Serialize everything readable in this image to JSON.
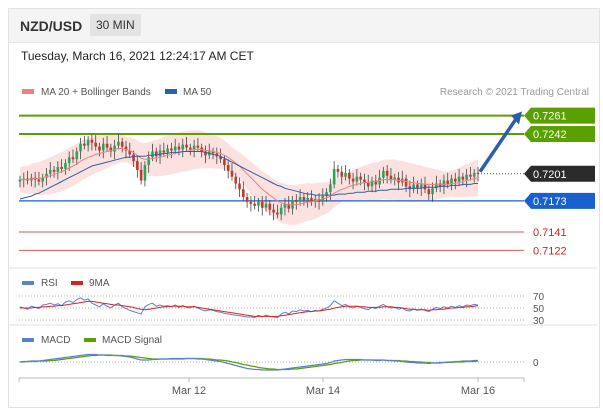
{
  "header": {
    "symbol": "NZD/USD",
    "timeframe": "30 MIN"
  },
  "datetime": "Tuesday, March 16, 2021 12:24:17 AM CET",
  "legend": {
    "ma20": {
      "label": "MA 20 + Bollinger Bands",
      "color": "#f08080"
    },
    "ma50": {
      "label": "MA 50",
      "color": "#2d5fa8"
    }
  },
  "credit": "Research © 2021 Trading Central",
  "colors": {
    "bull": "#26a65b",
    "bear": "#c0392b",
    "resistance": "#5aa000",
    "support": "#e05555",
    "pivot": "#1a5fd0",
    "band": "#fbdcdc",
    "arrow": "#2d5fa8"
  },
  "levels": [
    {
      "value": "0.7261",
      "kind": "resistance"
    },
    {
      "value": "0.7242",
      "kind": "resistance"
    },
    {
      "value": "0.7201",
      "kind": "current"
    },
    {
      "value": "0.7173",
      "kind": "pivot"
    },
    {
      "value": "0.7141",
      "kind": "support"
    },
    {
      "value": "0.7122",
      "kind": "support"
    }
  ],
  "rsi_panel": {
    "legend": [
      {
        "label": "RSI",
        "color": "#5b7fd6"
      },
      {
        "label": "9MA",
        "color": "#e02020"
      }
    ],
    "ticks": [
      "70",
      "50",
      "30"
    ]
  },
  "macd_panel": {
    "legend": [
      {
        "label": "MACD",
        "color": "#5b7fd6"
      },
      {
        "label": "MACD Signal",
        "color": "#5aa000"
      }
    ],
    "ticks": [
      "0"
    ]
  },
  "chart_data": {
    "type": "line",
    "xlabel": "",
    "ylabel": "",
    "x_ticks": [
      "Mar 12",
      "Mar 14",
      "Mar 16"
    ],
    "ylim": [
      0.711,
      0.7275
    ],
    "close": [
      0.7195,
      0.7196,
      0.7194,
      0.7197,
      0.7195,
      0.7193,
      0.7197,
      0.7201,
      0.7205,
      0.7203,
      0.7208,
      0.7206,
      0.7212,
      0.7218,
      0.7216,
      0.7224,
      0.7232,
      0.723,
      0.7236,
      0.7233,
      0.7229,
      0.7225,
      0.7232,
      0.7228,
      0.7224,
      0.723,
      0.7234,
      0.7229,
      0.7225,
      0.7221,
      0.7214,
      0.7205,
      0.7194,
      0.721,
      0.7218,
      0.7224,
      0.7219,
      0.7225,
      0.7223,
      0.7227,
      0.7225,
      0.7229,
      0.7226,
      0.7231,
      0.7228,
      0.7226,
      0.723,
      0.7228,
      0.7224,
      0.722,
      0.7224,
      0.7222,
      0.7219,
      0.7216,
      0.721,
      0.7204,
      0.7198,
      0.7191,
      0.7185,
      0.7177,
      0.7172,
      0.717,
      0.7168,
      0.7172,
      0.7166,
      0.717,
      0.7164,
      0.7161,
      0.7159,
      0.7166,
      0.717,
      0.7165,
      0.7174,
      0.7172,
      0.7177,
      0.7174,
      0.7176,
      0.7172,
      0.7175,
      0.7172,
      0.7178,
      0.7182,
      0.719,
      0.7206,
      0.7203,
      0.7198,
      0.7202,
      0.7196,
      0.7193,
      0.7198,
      0.7195,
      0.7192,
      0.7188,
      0.7194,
      0.719,
      0.7197,
      0.7204,
      0.7199,
      0.7195,
      0.7197,
      0.7192,
      0.7196,
      0.7188,
      0.7185,
      0.719,
      0.7186,
      0.719,
      0.7185,
      0.718,
      0.7186,
      0.7191,
      0.7188,
      0.7194,
      0.719,
      0.7196,
      0.7193,
      0.7198,
      0.7195,
      0.72,
      0.7198,
      0.7202,
      0.7201
    ],
    "ma20": [
      0.7195,
      0.7195,
      0.7195,
      0.7196,
      0.7196,
      0.7196,
      0.7197,
      0.7198,
      0.7199,
      0.72,
      0.7202,
      0.7203,
      0.7205,
      0.7207,
      0.7209,
      0.7211,
      0.7214,
      0.7216,
      0.7218,
      0.7219,
      0.7221,
      0.7222,
      0.7223,
      0.7224,
      0.7225,
      0.7226,
      0.7227,
      0.7227,
      0.7226,
      0.7225,
      0.7223,
      0.722,
      0.7217,
      0.7216,
      0.7216,
      0.7217,
      0.7217,
      0.7218,
      0.7219,
      0.722,
      0.7221,
      0.7222,
      0.7223,
      0.7224,
      0.7224,
      0.7225,
      0.7226,
      0.7226,
      0.7226,
      0.7225,
      0.7225,
      0.7224,
      0.7223,
      0.7222,
      0.722,
      0.7218,
      0.7215,
      0.7212,
      0.7209,
      0.7205,
      0.7201,
      0.7197,
      0.7193,
      0.7189,
      0.7185,
      0.7182,
      0.7179,
      0.7176,
      0.7173,
      0.7171,
      0.717,
      0.7169,
      0.7169,
      0.7169,
      0.717,
      0.7171,
      0.7172,
      0.7172,
      0.7173,
      0.7174,
      0.7175,
      0.7176,
      0.7178,
      0.7181,
      0.7183,
      0.7185,
      0.7186,
      0.7188,
      0.7189,
      0.719,
      0.7191,
      0.7192,
      0.7192,
      0.7193,
      0.7193,
      0.7194,
      0.7195,
      0.7195,
      0.7195,
      0.7195,
      0.7194,
      0.7194,
      0.7193,
      0.7192,
      0.7192,
      0.7191,
      0.7191,
      0.719,
      0.719,
      0.719,
      0.719,
      0.719,
      0.719,
      0.719,
      0.7191,
      0.7191,
      0.7192,
      0.7193,
      0.7194,
      0.7195,
      0.7196,
      0.7197
    ],
    "ma50": [
      0.7175,
      0.7176,
      0.7177,
      0.7178,
      0.718,
      0.7181,
      0.7183,
      0.7185,
      0.7187,
      0.7189,
      0.7191,
      0.7193,
      0.7195,
      0.7197,
      0.7199,
      0.7201,
      0.7203,
      0.7205,
      0.7207,
      0.7209,
      0.721,
      0.7211,
      0.7212,
      0.7213,
      0.7214,
      0.7215,
      0.7216,
      0.7217,
      0.7218,
      0.7218,
      0.7219,
      0.7219,
      0.7219,
      0.7219,
      0.722,
      0.722,
      0.7221,
      0.7221,
      0.7222,
      0.7222,
      0.7223,
      0.7223,
      0.7223,
      0.7224,
      0.7224,
      0.7224,
      0.7224,
      0.7224,
      0.7224,
      0.7223,
      0.7222,
      0.7221,
      0.722,
      0.7219,
      0.7217,
      0.7215,
      0.7213,
      0.7211,
      0.7209,
      0.7207,
      0.7205,
      0.7203,
      0.7201,
      0.7199,
      0.7197,
      0.7195,
      0.7193,
      0.7191,
      0.7189,
      0.7188,
      0.7186,
      0.7185,
      0.7184,
      0.7183,
      0.7182,
      0.7181,
      0.718,
      0.718,
      0.7179,
      0.7179,
      0.7179,
      0.7179,
      0.7179,
      0.7179,
      0.718,
      0.718,
      0.718,
      0.7181,
      0.7181,
      0.7182,
      0.7182,
      0.7182,
      0.7183,
      0.7183,
      0.7183,
      0.7184,
      0.7184,
      0.7184,
      0.7185,
      0.7185,
      0.7185,
      0.7185,
      0.7186,
      0.7186,
      0.7186,
      0.7186,
      0.7186,
      0.7187,
      0.7187,
      0.7187,
      0.7187,
      0.7188,
      0.7188,
      0.7188,
      0.7189,
      0.7189,
      0.7189,
      0.719,
      0.719,
      0.719,
      0.7191,
      0.7191
    ],
    "band_width": 0.0016,
    "rsi": [
      52,
      50,
      48,
      53,
      51,
      49,
      55,
      56,
      58,
      55,
      57,
      54,
      60,
      62,
      59,
      64,
      67,
      63,
      65,
      58,
      55,
      52,
      57,
      53,
      50,
      55,
      58,
      52,
      49,
      46,
      44,
      42,
      40,
      52,
      56,
      58,
      53,
      55,
      53,
      54,
      52,
      55,
      51,
      54,
      51,
      50,
      53,
      50,
      47,
      45,
      47,
      46,
      44,
      43,
      41,
      40,
      39,
      38,
      37,
      36,
      35,
      35,
      34,
      38,
      35,
      38,
      36,
      35,
      34,
      40,
      43,
      40,
      45,
      44,
      47,
      45,
      46,
      44,
      46,
      45,
      48,
      50,
      54,
      62,
      58,
      54,
      56,
      52,
      50,
      53,
      51,
      49,
      47,
      51,
      49,
      53,
      56,
      52,
      50,
      51,
      48,
      50,
      46,
      45,
      48,
      46,
      48,
      46,
      44,
      48,
      51,
      49,
      52,
      50,
      53,
      51,
      54,
      52,
      55,
      54,
      56,
      55
    ],
    "rsi_ma": [
      50,
      50,
      50,
      50,
      51,
      51,
      52,
      52,
      53,
      53,
      54,
      54,
      55,
      56,
      57,
      58,
      59,
      60,
      61,
      61,
      60,
      59,
      58,
      57,
      56,
      55,
      55,
      54,
      53,
      52,
      51,
      49,
      48,
      47,
      48,
      49,
      50,
      51,
      52,
      52,
      53,
      53,
      53,
      53,
      52,
      52,
      52,
      51,
      50,
      49,
      48,
      47,
      46,
      45,
      44,
      43,
      42,
      41,
      40,
      39,
      38,
      37,
      36,
      36,
      36,
      36,
      36,
      36,
      36,
      37,
      38,
      39,
      40,
      41,
      42,
      43,
      44,
      44,
      45,
      45,
      46,
      47,
      48,
      50,
      51,
      52,
      53,
      53,
      53,
      53,
      52,
      52,
      51,
      51,
      51,
      51,
      52,
      52,
      52,
      51,
      51,
      50,
      49,
      48,
      48,
      47,
      47,
      47,
      46,
      47,
      47,
      48,
      48,
      49,
      50,
      50,
      51,
      51,
      52,
      52,
      53,
      54
    ],
    "macd": [
      0,
      0.1,
      0.1,
      0.2,
      0.2,
      0.2,
      0.3,
      0.4,
      0.5,
      0.6,
      0.7,
      0.8,
      0.9,
      1.0,
      1.1,
      1.2,
      1.3,
      1.4,
      1.5,
      1.5,
      1.5,
      1.4,
      1.4,
      1.3,
      1.3,
      1.3,
      1.3,
      1.2,
      1.1,
      1.0,
      0.8,
      0.6,
      0.4,
      0.4,
      0.4,
      0.5,
      0.5,
      0.6,
      0.6,
      0.6,
      0.7,
      0.7,
      0.7,
      0.7,
      0.7,
      0.7,
      0.7,
      0.6,
      0.6,
      0.5,
      0.4,
      0.3,
      0.2,
      0.1,
      -0.1,
      -0.3,
      -0.5,
      -0.7,
      -0.9,
      -1.1,
      -1.3,
      -1.4,
      -1.5,
      -1.5,
      -1.6,
      -1.6,
      -1.6,
      -1.6,
      -1.6,
      -1.5,
      -1.4,
      -1.3,
      -1.2,
      -1.1,
      -1.0,
      -0.9,
      -0.8,
      -0.7,
      -0.6,
      -0.5,
      -0.4,
      -0.3,
      -0.1,
      0.2,
      0.3,
      0.4,
      0.5,
      0.5,
      0.5,
      0.5,
      0.5,
      0.4,
      0.4,
      0.4,
      0.3,
      0.3,
      0.4,
      0.3,
      0.3,
      0.2,
      0.2,
      0.1,
      0,
      -0.1,
      -0.1,
      -0.2,
      -0.2,
      -0.2,
      -0.3,
      -0.2,
      -0.2,
      -0.1,
      -0.1,
      0,
      0,
      0.1,
      0.1,
      0.2,
      0.2,
      0.2,
      0.3,
      0.3
    ],
    "macd_signal": [
      0,
      0,
      0.1,
      0.1,
      0.1,
      0.2,
      0.2,
      0.2,
      0.3,
      0.3,
      0.4,
      0.5,
      0.6,
      0.7,
      0.8,
      0.9,
      1.0,
      1.1,
      1.2,
      1.3,
      1.3,
      1.4,
      1.4,
      1.4,
      1.4,
      1.3,
      1.3,
      1.3,
      1.2,
      1.2,
      1.1,
      1.0,
      0.9,
      0.8,
      0.7,
      0.6,
      0.6,
      0.6,
      0.6,
      0.6,
      0.6,
      0.6,
      0.6,
      0.6,
      0.7,
      0.7,
      0.7,
      0.7,
      0.7,
      0.6,
      0.6,
      0.5,
      0.4,
      0.4,
      0.3,
      0.2,
      0.0,
      -0.1,
      -0.3,
      -0.5,
      -0.6,
      -0.8,
      -0.9,
      -1.1,
      -1.2,
      -1.3,
      -1.4,
      -1.4,
      -1.5,
      -1.5,
      -1.5,
      -1.5,
      -1.4,
      -1.4,
      -1.3,
      -1.2,
      -1.1,
      -1.0,
      -0.9,
      -0.8,
      -0.7,
      -0.6,
      -0.5,
      -0.3,
      -0.2,
      -0.1,
      0.1,
      0.2,
      0.3,
      0.3,
      0.4,
      0.4,
      0.4,
      0.4,
      0.4,
      0.4,
      0.4,
      0.3,
      0.3,
      0.3,
      0.3,
      0.2,
      0.2,
      0.1,
      0.1,
      0,
      0,
      -0.1,
      -0.1,
      -0.2,
      -0.2,
      -0.2,
      -0.1,
      -0.1,
      -0.1,
      0,
      0,
      0,
      0.1,
      0.1,
      0.1,
      0.2
    ]
  }
}
